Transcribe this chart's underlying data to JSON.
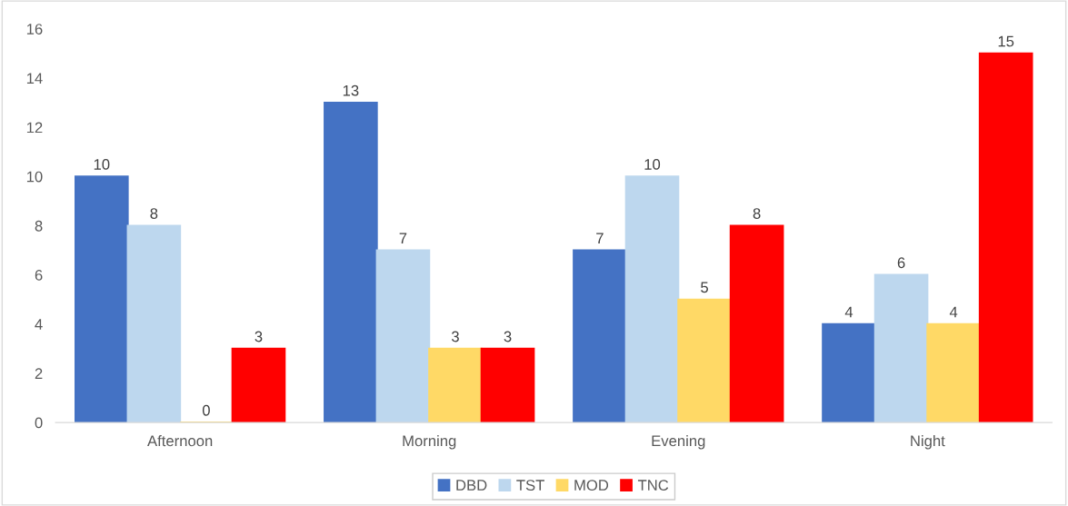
{
  "chart_data": {
    "type": "bar",
    "categories": [
      "Afternoon",
      "Morning",
      "Evening",
      "Night"
    ],
    "series": [
      {
        "name": "DBD",
        "color": "#4472c4",
        "values": [
          10,
          13,
          7,
          4
        ]
      },
      {
        "name": "TST",
        "color": "#bdd7ee",
        "values": [
          8,
          7,
          10,
          6
        ]
      },
      {
        "name": "MOD",
        "color": "#ffd966",
        "values": [
          0,
          3,
          5,
          4
        ]
      },
      {
        "name": "TNC",
        "color": "#ff0000",
        "values": [
          3,
          3,
          8,
          15
        ]
      }
    ],
    "ylim": [
      0,
      16
    ],
    "yticks": [
      0,
      2,
      4,
      6,
      8,
      10,
      12,
      14,
      16
    ],
    "grid": false,
    "legend": "bottom",
    "data_labels": true
  }
}
